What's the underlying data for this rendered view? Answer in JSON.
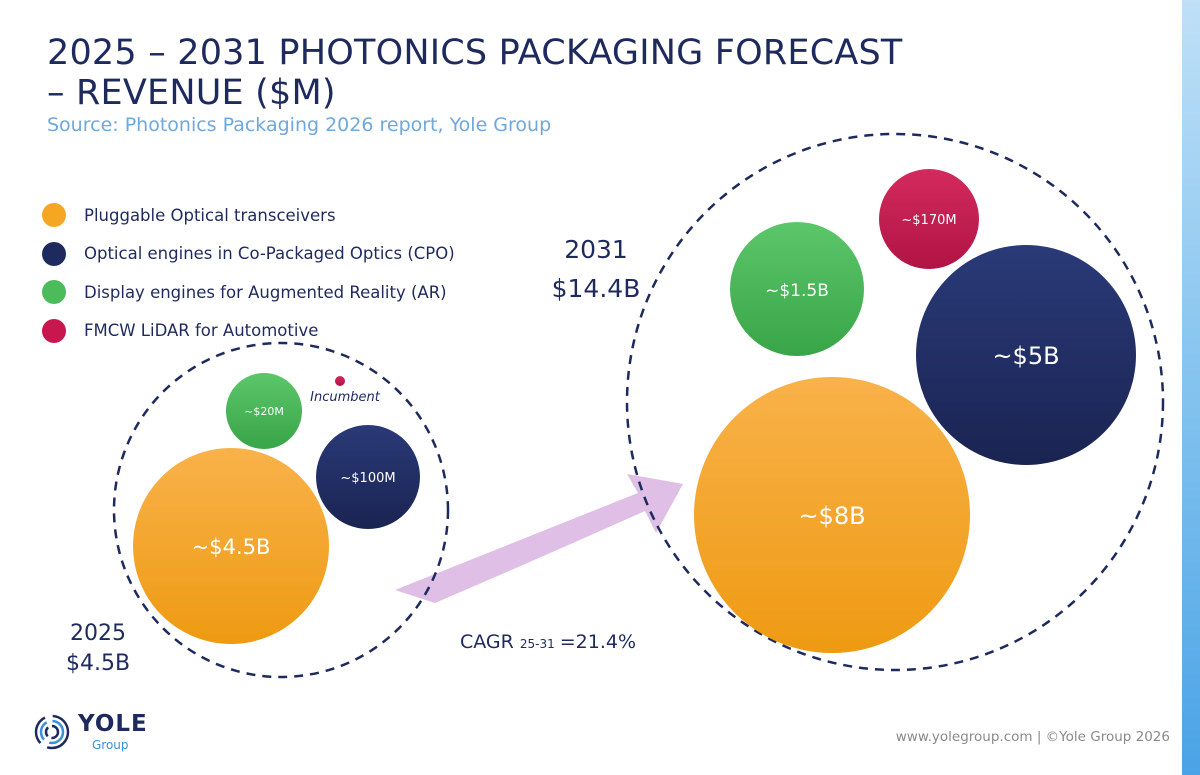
{
  "header": {
    "title_line1": "2025 – 2031 PHOTONICS PACKAGING FORECAST",
    "title_line2": "– REVENUE ($M)",
    "source": "Source: Photonics Packaging 2026 report, Yole Group"
  },
  "legend": [
    {
      "label": "Pluggable Optical transceivers",
      "color": "#f5a623"
    },
    {
      "label": "Optical engines in Co-Packaged Optics (CPO)",
      "color": "#1e2a5e"
    },
    {
      "label": "Display engines for Augmented Reality (AR)",
      "color": "#4cbb5a"
    },
    {
      "label": "FMCW LiDAR for Automotive",
      "color": "#c8174f"
    }
  ],
  "chart_data": {
    "type": "bubble",
    "title": "2025 – 2031 PHOTONICS PACKAGING FORECAST – REVENUE ($M)",
    "unit": "$M",
    "groups": [
      {
        "year": "2025",
        "total_label": "$4.5B",
        "bubbles": [
          {
            "segment": "Pluggable Optical transceivers",
            "label": "~$4.5B",
            "value_musd": 4500
          },
          {
            "segment": "Optical engines in Co-Packaged Optics (CPO)",
            "label": "~$100M",
            "value_musd": 100
          },
          {
            "segment": "Display engines for Augmented Reality (AR)",
            "label": "~$20M",
            "value_musd": 20
          },
          {
            "segment": "FMCW LiDAR for Automotive",
            "label": "Incumbent",
            "value_musd": null
          }
        ]
      },
      {
        "year": "2031",
        "total_label": "$14.4B",
        "bubbles": [
          {
            "segment": "Pluggable Optical transceivers",
            "label": "~$8B",
            "value_musd": 8000
          },
          {
            "segment": "Optical engines in Co-Packaged Optics (CPO)",
            "label": "~$5B",
            "value_musd": 5000
          },
          {
            "segment": "Display engines for Augmented Reality (AR)",
            "label": "~$1.5B",
            "value_musd": 1500
          },
          {
            "segment": "FMCW LiDAR for Automotive",
            "label": "~$170M",
            "value_musd": 170
          }
        ]
      }
    ],
    "cagr": {
      "prefix": "CAGR",
      "period": "25-31",
      "value_text": "=21.4%"
    }
  },
  "footer": {
    "logo_name": "YOLE",
    "logo_sub": "Group",
    "credit": "www.yolegroup.com | ©Yole Group 2026"
  }
}
